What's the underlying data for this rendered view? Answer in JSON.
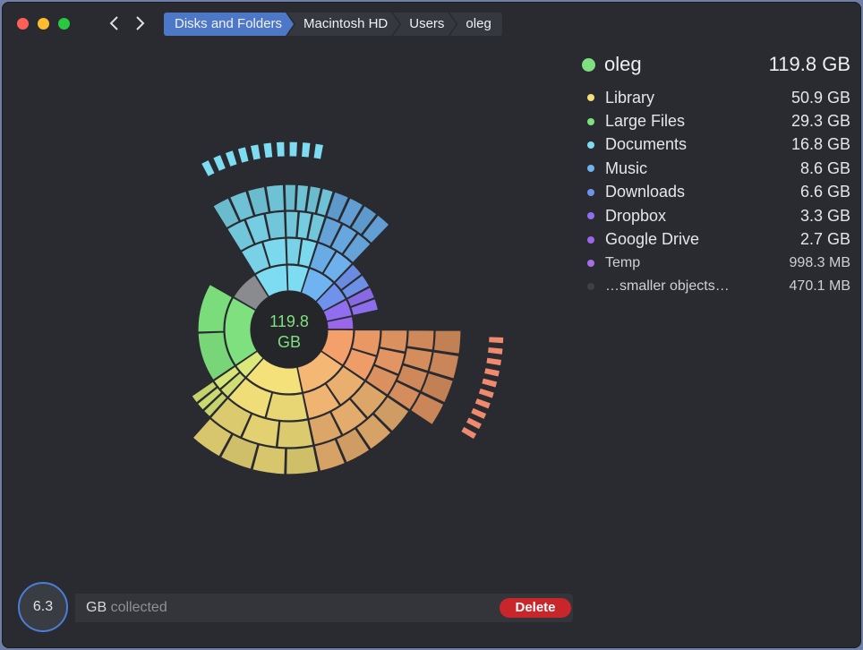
{
  "breadcrumbs": [
    "Disks and Folders",
    "Macintosh HD",
    "Users",
    "oleg"
  ],
  "center": {
    "value": "119.8",
    "unit": "GB"
  },
  "folder": {
    "name": "oleg",
    "size": "119.8 GB",
    "color": "#7ee07e"
  },
  "legend": [
    {
      "label": "Library",
      "size": "50.9 GB",
      "color": "#f4e17a"
    },
    {
      "label": "Large Files",
      "size": "29.3 GB",
      "color": "#7ee07e"
    },
    {
      "label": "Documents",
      "size": "16.8 GB",
      "color": "#7edcf2"
    },
    {
      "label": "Music",
      "size": "8.6 GB",
      "color": "#6fb4f0"
    },
    {
      "label": "Downloads",
      "size": "6.6 GB",
      "color": "#6f93ec"
    },
    {
      "label": "Dropbox",
      "size": "3.3 GB",
      "color": "#8f6ff0"
    },
    {
      "label": "Google Drive",
      "size": "2.7 GB",
      "color": "#9a66ea"
    },
    {
      "label": "Temp",
      "size": "998.3 MB",
      "color": "#a86ee8"
    },
    {
      "label": "…smaller objects…",
      "size": "470.1 MB",
      "color": "#3f4046"
    }
  ],
  "collector": {
    "amount": "6.3",
    "unit": "GB",
    "collected_label": "collected",
    "delete_label": "Delete"
  }
}
